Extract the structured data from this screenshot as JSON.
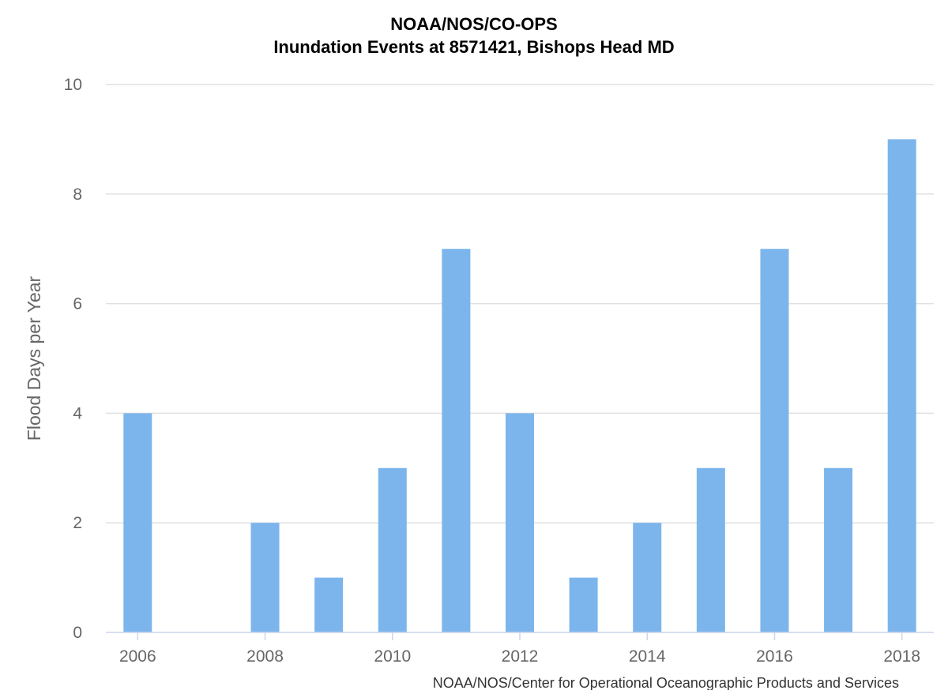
{
  "chart_data": {
    "type": "bar",
    "title": "NOAA/NOS/CO-OPS",
    "subtitle": "Inundation Events at 8571421, Bishops Head MD",
    "ylabel": "Flood Days per Year",
    "xlabel": "",
    "categories": [
      "2006",
      "2007",
      "2008",
      "2009",
      "2010",
      "2011",
      "2012",
      "2013",
      "2014",
      "2015",
      "2016",
      "2017",
      "2018"
    ],
    "values": [
      4,
      0,
      2,
      1,
      3,
      7,
      4,
      1,
      2,
      3,
      7,
      3,
      9
    ],
    "x_tick_labels": [
      "2006",
      "2008",
      "2010",
      "2012",
      "2014",
      "2016",
      "2018"
    ],
    "y_tick_labels": [
      "0",
      "2",
      "4",
      "6",
      "8",
      "10"
    ],
    "ylim": [
      0,
      10
    ],
    "grid": true,
    "legend": "none",
    "bar_color": "#7cb5ec",
    "credit": "NOAA/NOS/Center for Operational Oceanographic Products and Services"
  }
}
